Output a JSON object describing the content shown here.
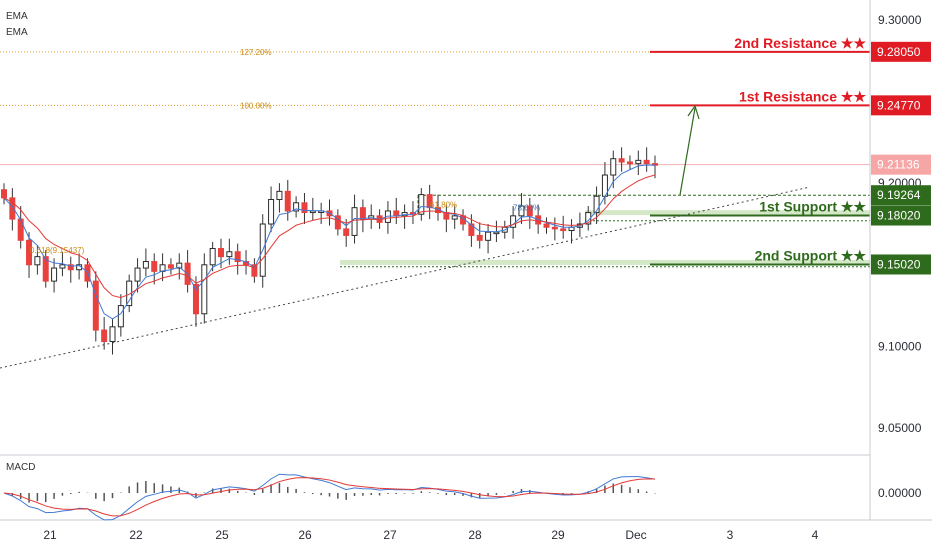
{
  "chart_data": {
    "type": "candlestick",
    "indicators": {
      "ema_1": "EMA",
      "ema_2": "EMA",
      "macd": "MACD"
    },
    "y_axis": {
      "ticks": [
        "9.30000",
        "9.25000",
        "9.20000",
        "9.15000",
        "9.10000",
        "9.05000"
      ],
      "tick_values": [
        9.3,
        9.25,
        9.2,
        9.15,
        9.1,
        9.05
      ],
      "ylim": [
        9.03,
        9.31
      ]
    },
    "macd_axis": {
      "ticks": [
        "0.00000"
      ]
    },
    "x_axis": {
      "ticks": [
        "21",
        "22",
        "25",
        "26",
        "27",
        "28",
        "29",
        "Dec",
        "3",
        "4"
      ]
    },
    "price_tags": [
      {
        "label": "9.28050",
        "value": 9.2805,
        "color": "#e01b24"
      },
      {
        "label": "9.24770",
        "value": 9.2477,
        "color": "#e01b24"
      },
      {
        "label": "9.21136",
        "value": 9.21136,
        "color": "#f7a6a6"
      },
      {
        "label": "9.19264",
        "value": 9.19264,
        "color": "#2f6b1c"
      },
      {
        "label": "9.18020",
        "value": 9.1802,
        "color": "#2f6b1c"
      },
      {
        "label": "9.15020",
        "value": 9.1502,
        "color": "#2f6b1c"
      }
    ],
    "levels": [
      {
        "label": "2nd Resistance ★★",
        "value": 9.2805,
        "color": "#e01b24"
      },
      {
        "label": "1st Resistance ★★",
        "value": 9.2477,
        "color": "#e01b24"
      },
      {
        "label": "1st Support ★★",
        "value": 9.1802,
        "color": "#2f6b1c"
      },
      {
        "label": "2nd Support ★★",
        "value": 9.1502,
        "color": "#2f6b1c"
      }
    ],
    "fib_labels": [
      {
        "label": "127.20%",
        "value": 9.2805
      },
      {
        "label": "100.00%",
        "value": 9.2477
      },
      {
        "label": "61.80%",
        "value": 9.1802
      },
      {
        "label": "78.60%",
        "value": 9.177
      },
      {
        "label": "0.618(9.15437)",
        "value": 9.15437
      }
    ],
    "close": [
      9.191,
      9.178,
      9.165,
      9.15,
      9.155,
      9.14,
      9.148,
      9.15,
      9.147,
      9.15,
      9.14,
      9.11,
      9.103,
      9.112,
      9.125,
      9.14,
      9.148,
      9.152,
      9.146,
      9.15,
      9.148,
      9.151,
      9.138,
      9.12,
      9.15,
      9.16,
      9.155,
      9.158,
      9.152,
      9.15,
      9.143,
      9.175,
      9.19,
      9.195,
      9.183,
      9.188,
      9.182,
      9.183,
      9.183,
      9.18,
      9.172,
      9.168,
      9.185,
      9.178,
      9.18,
      9.176,
      9.183,
      9.18,
      9.182,
      9.181,
      9.193,
      9.185,
      9.182,
      9.178,
      9.18,
      9.175,
      9.168,
      9.165,
      9.17,
      9.17,
      9.173,
      9.18,
      9.186,
      9.18,
      9.175,
      9.173,
      9.172,
      9.171,
      9.173,
      9.175,
      9.182,
      9.192,
      9.205,
      9.215,
      9.213,
      9.212,
      9.214,
      9.212,
      9.211
    ]
  }
}
